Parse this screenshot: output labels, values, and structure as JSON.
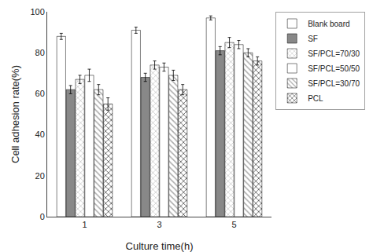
{
  "chart_data": {
    "type": "bar",
    "xlabel": "Culture time(h)",
    "ylabel": "Cell adhesion rate(%)",
    "categories": [
      "1",
      "3",
      "5"
    ],
    "series": [
      {
        "name": "Blank board",
        "color": "white",
        "values": [
          88,
          91,
          97
        ],
        "errors": [
          1.5,
          1.5,
          1.0
        ]
      },
      {
        "name": "SF",
        "color": "#888888",
        "values": [
          62,
          68,
          81
        ],
        "errors": [
          2.0,
          2.0,
          2.0
        ]
      },
      {
        "name": "SF/PCL=70/30",
        "color": "#cccccc",
        "values": [
          67,
          74,
          85
        ],
        "errors": [
          2.0,
          2.0,
          2.5
        ]
      },
      {
        "name": "SF/PCL=50/50",
        "color": "white",
        "values": [
          69,
          73,
          84
        ],
        "errors": [
          3.0,
          2.0,
          2.0
        ]
      },
      {
        "name": "SF/PCL=30/70",
        "color": "#aaaaaa",
        "values": [
          62,
          69,
          80
        ],
        "errors": [
          2.5,
          2.5,
          2.0
        ]
      },
      {
        "name": "PCL",
        "color": "#555555",
        "values": [
          55,
          62,
          76
        ],
        "errors": [
          3.0,
          2.5,
          2.0
        ]
      }
    ],
    "ylim": [
      0,
      100
    ],
    "yticks": [
      0,
      20,
      40,
      60,
      80,
      100
    ],
    "grid": false,
    "legend": "right"
  }
}
